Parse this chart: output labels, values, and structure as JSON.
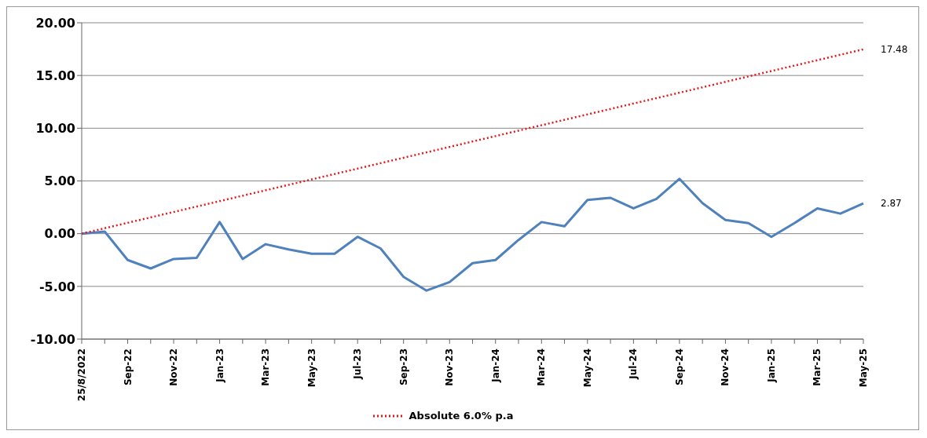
{
  "chart_data": {
    "type": "line",
    "categories": [
      "25/8/2022",
      null,
      "Sep-22",
      null,
      "Nov-22",
      null,
      "Jan-23",
      null,
      "Mar-23",
      null,
      "May-23",
      null,
      "Jul-23",
      null,
      "Sep-23",
      null,
      "Nov-23",
      null,
      "Jan-24",
      null,
      "Mar-24",
      null,
      "May-24",
      null,
      "Jul-24",
      null,
      "Sep-24",
      null,
      "Nov-24",
      null,
      "Jan-25",
      null,
      "Mar-25",
      null,
      "May-25"
    ],
    "series": [
      {
        "color": "#4f81bd",
        "line_style": "solid",
        "values": [
          0,
          0.2,
          -2.5,
          -3.3,
          -2.4,
          -2.3,
          1.1,
          -2.4,
          -1.0,
          -1.5,
          -1.9,
          -1.9,
          -0.3,
          -1.4,
          -4.1,
          -5.4,
          -4.6,
          -2.8,
          -2.5,
          -0.6,
          1.1,
          0.7,
          3.2,
          3.4,
          2.4,
          3.3,
          5.2,
          2.9,
          1.3,
          1.0,
          -0.3,
          1.0,
          2.4,
          1.9,
          2.87
        ],
        "value_labels": [
          null,
          null,
          null,
          null,
          null,
          null,
          null,
          null,
          null,
          null,
          null,
          null,
          null,
          null,
          null,
          null,
          null,
          null,
          null,
          null,
          null,
          null,
          null,
          null,
          null,
          null,
          null,
          null,
          null,
          null,
          null,
          null,
          null,
          null,
          "2.87"
        ]
      },
      {
        "name": "Absolute 6.0% p.a",
        "color": "#e31a1c",
        "line_style": "dotted",
        "values": [
          0,
          null,
          null,
          null,
          null,
          null,
          null,
          null,
          null,
          null,
          null,
          null,
          null,
          null,
          null,
          null,
          null,
          null,
          null,
          null,
          null,
          null,
          null,
          null,
          null,
          null,
          null,
          null,
          null,
          null,
          null,
          null,
          null,
          null,
          17.48
        ],
        "value_labels": [
          null,
          null,
          null,
          null,
          null,
          null,
          null,
          null,
          null,
          null,
          null,
          null,
          null,
          null,
          null,
          null,
          null,
          null,
          null,
          null,
          null,
          null,
          null,
          null,
          null,
          null,
          null,
          null,
          null,
          null,
          null,
          null,
          null,
          null,
          "17.48"
        ]
      }
    ],
    "ylim": [
      -10,
      20
    ],
    "yticks": [
      {
        "value": -10,
        "label": "-10.00"
      },
      {
        "value": -5,
        "label": "-5.00"
      },
      {
        "value": 0,
        "label": "0.00"
      },
      {
        "value": 5,
        "label": "5.00"
      },
      {
        "value": 10,
        "label": "10.00"
      },
      {
        "value": 15,
        "label": "15.00"
      },
      {
        "value": 20,
        "label": "20.00"
      }
    ],
    "grid": "y",
    "legend": "bottom",
    "marker": "none"
  }
}
